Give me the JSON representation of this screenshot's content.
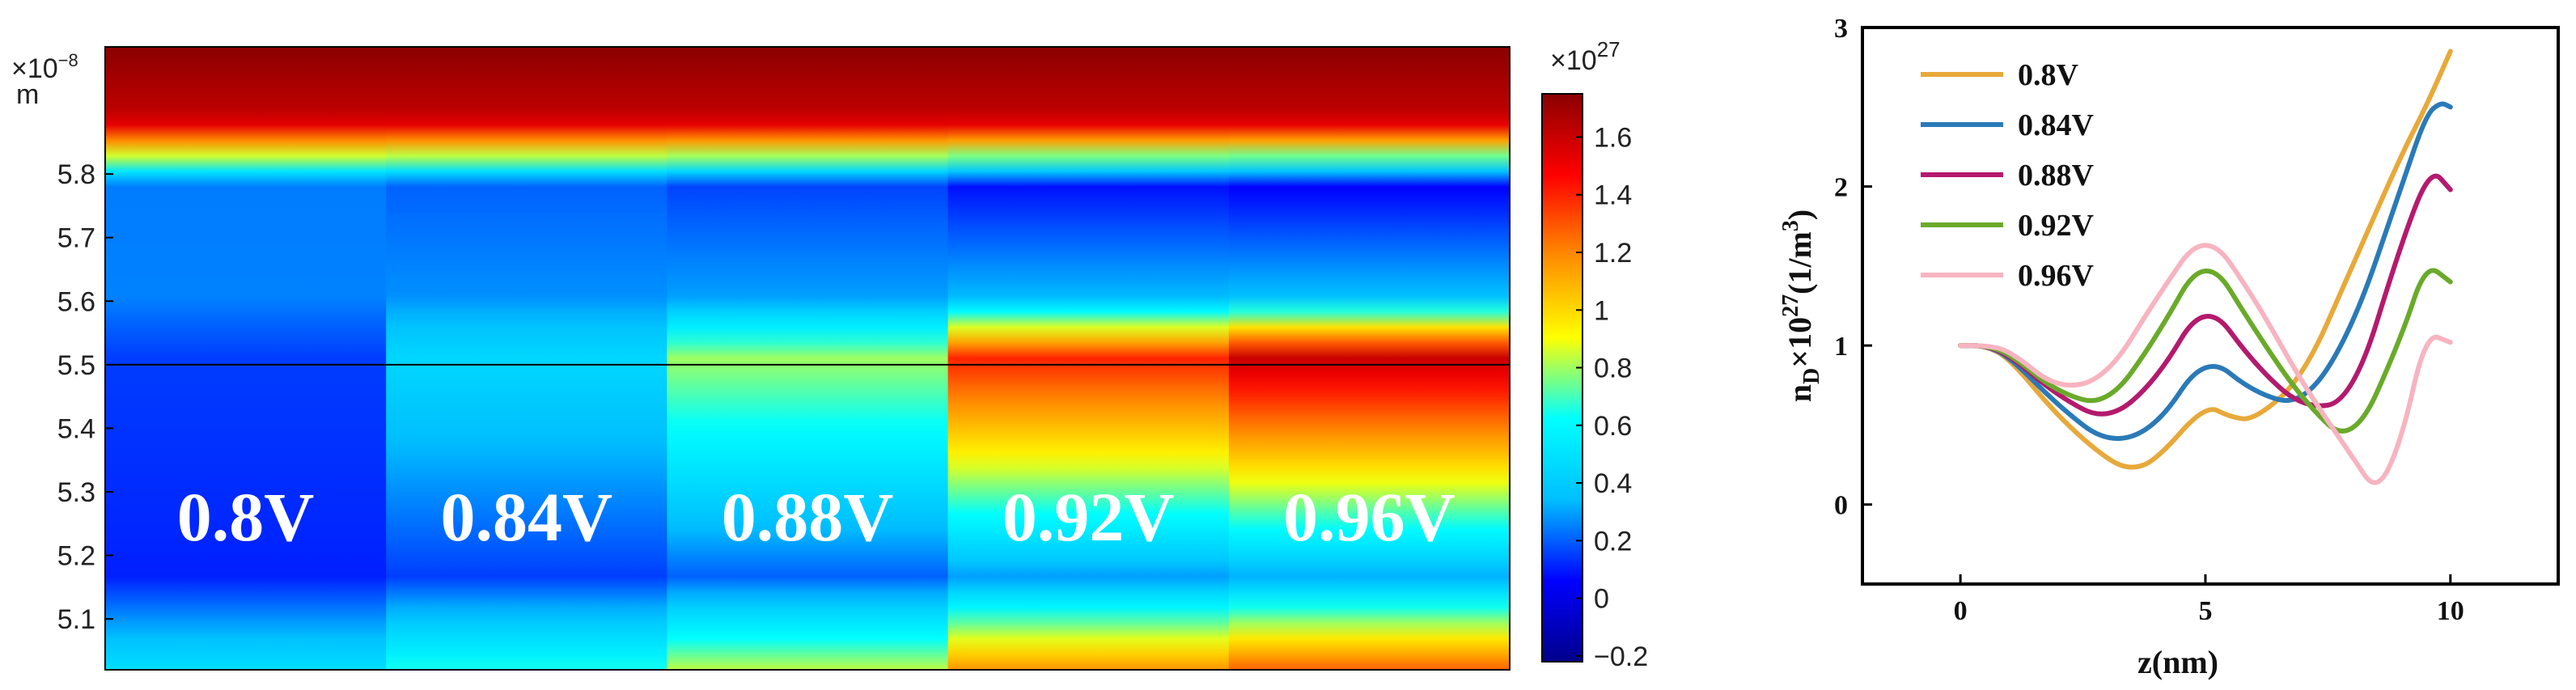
{
  "chart_data": [
    {
      "type": "heatmap",
      "panels": [
        {
          "label": "0.8V",
          "low_band_level": 0.05
        },
        {
          "label": "0.84V",
          "low_band_level": 0.35
        },
        {
          "label": "0.88V",
          "low_band_level": 0.7
        },
        {
          "label": "0.92V",
          "low_band_level": 1.3
        },
        {
          "label": "0.96V",
          "low_band_level": 1.5
        }
      ],
      "y_multiplier": "×10",
      "y_exponent": "−8",
      "y_unit": "m",
      "y_ticks": [
        "5.8",
        "5.7",
        "5.6",
        "5.5",
        "5.4",
        "5.3",
        "5.2",
        "5.1"
      ],
      "y_range": [
        5.02,
        6.0
      ],
      "marker_line_y": 5.5,
      "colorbar": {
        "multiplier": "×10",
        "exponent": "27",
        "ticks": [
          "1.6",
          "1.4",
          "1.2",
          "1",
          "0.8",
          "0.6",
          "0.4",
          "0.2",
          "0",
          "−0.2"
        ],
        "range": [
          -0.22,
          1.75
        ],
        "colormap": [
          "#00008b",
          "#0000ff",
          "#00bfff",
          "#00ffff",
          "#ffff00",
          "#ff8c00",
          "#ff0000",
          "#8b0000"
        ]
      }
    },
    {
      "type": "line",
      "xlabel": "z(nm)",
      "ylabel": "n_D×10^27(1/m^3)",
      "ylabel_parts": {
        "base": "n",
        "sub": "D",
        "mid": "×10",
        "sup": "27",
        "unit_open": "(1/m",
        "unit_sup": "3",
        "unit_close": ")"
      },
      "xlim": [
        -2,
        12.2
      ],
      "ylim": [
        -0.5,
        3
      ],
      "x_ticks": [
        "0",
        "5",
        "10"
      ],
      "y_ticks": [
        "0",
        "1",
        "2",
        "3"
      ],
      "legend_position": "top-left",
      "series": [
        {
          "name": "0.8V",
          "color": "#e8a93a",
          "x": [
            0,
            0.5,
            1,
            2,
            3,
            3.5,
            4,
            5,
            5.5,
            6,
            7,
            8,
            9,
            9.5,
            10
          ],
          "y": [
            1.0,
            1.0,
            0.92,
            0.55,
            0.28,
            0.22,
            0.28,
            0.63,
            0.55,
            0.53,
            0.8,
            1.5,
            2.2,
            2.5,
            2.85
          ]
        },
        {
          "name": "0.84V",
          "color": "#2a7ab8",
          "x": [
            0,
            0.5,
            1,
            2,
            3,
            4,
            5,
            6,
            7,
            8,
            9,
            9.5,
            9.8,
            10
          ],
          "y": [
            1.0,
            1.0,
            0.93,
            0.62,
            0.38,
            0.48,
            0.95,
            0.7,
            0.62,
            1.1,
            2.0,
            2.45,
            2.53,
            2.5
          ]
        },
        {
          "name": "0.88V",
          "color": "#b41a6e",
          "x": [
            0,
            0.5,
            1,
            2,
            3,
            4,
            5,
            6,
            7,
            8,
            9,
            9.6,
            10
          ],
          "y": [
            1.0,
            1.0,
            0.94,
            0.68,
            0.52,
            0.78,
            1.3,
            0.88,
            0.6,
            0.65,
            1.65,
            2.12,
            1.98
          ]
        },
        {
          "name": "0.92V",
          "color": "#6aaa2a",
          "x": [
            0,
            0.5,
            1,
            2,
            3,
            4,
            5,
            6,
            7,
            8,
            9,
            9.5,
            10
          ],
          "y": [
            1.0,
            1.0,
            0.95,
            0.7,
            0.62,
            1.05,
            1.6,
            1.1,
            0.65,
            0.36,
            1.05,
            1.52,
            1.4
          ]
        },
        {
          "name": "0.96V",
          "color": "#f7b4c0",
          "x": [
            0,
            0.5,
            1,
            2,
            3,
            4,
            5,
            6,
            7,
            8,
            8.5,
            9,
            9.5,
            10
          ],
          "y": [
            1.0,
            1.0,
            0.97,
            0.72,
            0.8,
            1.3,
            1.74,
            1.3,
            0.75,
            0.3,
            0.07,
            0.4,
            1.08,
            1.02
          ]
        }
      ]
    }
  ]
}
